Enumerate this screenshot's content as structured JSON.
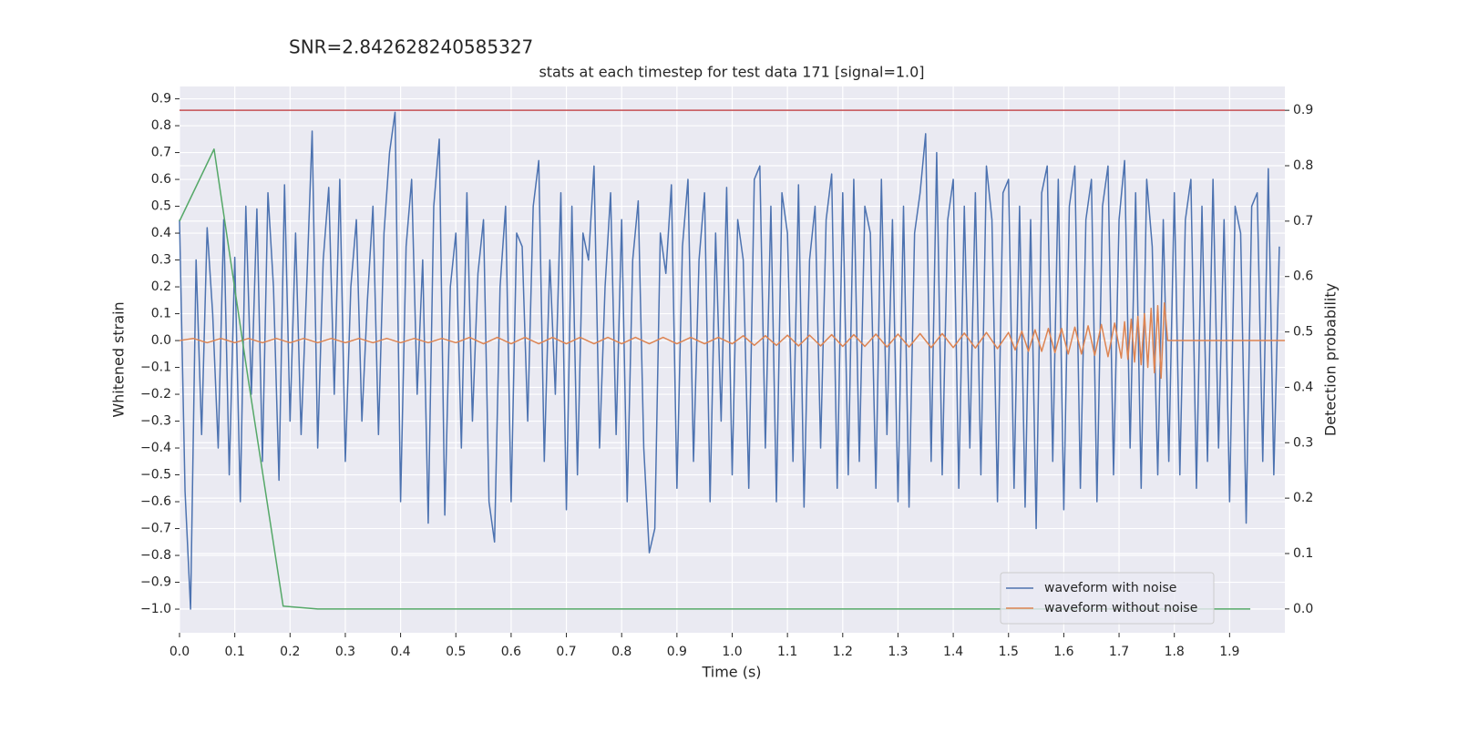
{
  "chart_data": {
    "type": "line",
    "suptitle": "SNR=2.842628240585327",
    "title": "stats at each timestep for test data 171 [signal=1.0]",
    "xlabel": "Time (s)",
    "ylabel": "Whitened strain",
    "y2label": "Detection probability",
    "xlim": [
      0,
      2.0
    ],
    "ylim": [
      -1.088,
      0.946
    ],
    "y2lim": [
      -0.043,
      0.943
    ],
    "xticks": [
      {
        "value": 0,
        "label": "0.0"
      },
      0.1,
      0.2,
      0.3,
      0.4,
      0.5,
      0.6,
      0.7,
      0.8,
      0.9,
      {
        "value": 1,
        "label": "1.0"
      },
      1.1,
      1.2,
      1.3,
      1.4,
      1.5,
      1.6,
      1.7,
      1.8,
      1.9
    ],
    "yticks": [
      {
        "value": -1,
        "label": "−1.0"
      },
      {
        "value": -0.9,
        "label": "−0.9"
      },
      {
        "value": -0.8,
        "label": "−0.8"
      },
      {
        "value": -0.7,
        "label": "−0.7"
      },
      {
        "value": -0.6,
        "label": "−0.6"
      },
      {
        "value": -0.5,
        "label": "−0.5"
      },
      {
        "value": -0.4,
        "label": "−0.4"
      },
      {
        "value": -0.3,
        "label": "−0.3"
      },
      {
        "value": -0.2,
        "label": "−0.2"
      },
      {
        "value": -0.1,
        "label": "−0.1"
      },
      {
        "value": 0,
        "label": "0.0"
      },
      0.1,
      0.2,
      0.3,
      0.4,
      0.5,
      0.6,
      0.7,
      0.8,
      0.9
    ],
    "y2ticks": [
      {
        "value": 0,
        "label": "0.0"
      },
      0.1,
      0.2,
      0.3,
      0.4,
      0.5,
      0.6,
      0.7,
      0.8,
      0.9
    ],
    "grid": true,
    "legend": "lower right",
    "series": [
      {
        "name": "waveform with noise",
        "color": "#4c72b0",
        "x": [
          0,
          0.01,
          0.02,
          0.03,
          0.04,
          0.05,
          0.06,
          0.07,
          0.08,
          0.09,
          0.1,
          0.11,
          0.12,
          0.13,
          0.14,
          0.15,
          0.16,
          0.17,
          0.18,
          0.19,
          0.2,
          0.21,
          0.22,
          0.23,
          0.24,
          0.25,
          0.26,
          0.27,
          0.28,
          0.29,
          0.3,
          0.31,
          0.32,
          0.33,
          0.34,
          0.35,
          0.36,
          0.37,
          0.38,
          0.39,
          0.4,
          0.41,
          0.42,
          0.43,
          0.44,
          0.45,
          0.46,
          0.47,
          0.48,
          0.49,
          0.5,
          0.51,
          0.52,
          0.53,
          0.54,
          0.55,
          0.56,
          0.57,
          0.58,
          0.59,
          0.6,
          0.61,
          0.62,
          0.63,
          0.64,
          0.65,
          0.66,
          0.67,
          0.68,
          0.69,
          0.7,
          0.71,
          0.72,
          0.73,
          0.74,
          0.75,
          0.76,
          0.77,
          0.78,
          0.79,
          0.8,
          0.81,
          0.82,
          0.83,
          0.84,
          0.85,
          0.86,
          0.87,
          0.88,
          0.89,
          0.9,
          0.91,
          0.92,
          0.93,
          0.94,
          0.95,
          0.96,
          0.97,
          0.98,
          0.99,
          1,
          1.01,
          1.02,
          1.03,
          1.04,
          1.05,
          1.06,
          1.07,
          1.08,
          1.09,
          1.1,
          1.11,
          1.12,
          1.13,
          1.14,
          1.15,
          1.16,
          1.17,
          1.18,
          1.19,
          1.2,
          1.21,
          1.22,
          1.23,
          1.24,
          1.25,
          1.26,
          1.27,
          1.28,
          1.29,
          1.3,
          1.31,
          1.32,
          1.33,
          1.34,
          1.35,
          1.36,
          1.37,
          1.38,
          1.39,
          1.4,
          1.41,
          1.42,
          1.43,
          1.44,
          1.45,
          1.46,
          1.47,
          1.48,
          1.49,
          1.5,
          1.51,
          1.52,
          1.53,
          1.54,
          1.55,
          1.56,
          1.57,
          1.58,
          1.59,
          1.6,
          1.61,
          1.62,
          1.63,
          1.64,
          1.65,
          1.66,
          1.67,
          1.68,
          1.69,
          1.7,
          1.71,
          1.72,
          1.73,
          1.74,
          1.75,
          1.76,
          1.77,
          1.78,
          1.79,
          1.8,
          1.81,
          1.82,
          1.83,
          1.84,
          1.85,
          1.86,
          1.87,
          1.88,
          1.89,
          1.9,
          1.91,
          1.92,
          1.93,
          1.94,
          1.95,
          1.96,
          1.97,
          1.98,
          1.99
        ],
        "values": [
          0.45,
          -0.56,
          -1.0,
          0.3,
          -0.35,
          0.42,
          0.1,
          -0.4,
          0.45,
          -0.5,
          0.31,
          -0.6,
          0.5,
          -0.2,
          0.49,
          -0.45,
          0.55,
          0.2,
          -0.52,
          0.58,
          -0.3,
          0.4,
          -0.35,
          0.2,
          0.78,
          -0.4,
          0.3,
          0.57,
          -0.2,
          0.6,
          -0.45,
          0.2,
          0.45,
          -0.3,
          0.15,
          0.5,
          -0.35,
          0.4,
          0.7,
          0.85,
          -0.6,
          0.35,
          0.6,
          -0.2,
          0.3,
          -0.68,
          0.5,
          0.75,
          -0.65,
          0.2,
          0.4,
          -0.4,
          0.55,
          -0.3,
          0.25,
          0.45,
          -0.6,
          -0.75,
          0.2,
          0.5,
          -0.6,
          0.4,
          0.35,
          -0.3,
          0.5,
          0.67,
          -0.45,
          0.3,
          -0.2,
          0.55,
          -0.63,
          0.5,
          -0.5,
          0.4,
          0.3,
          0.65,
          -0.4,
          0.2,
          0.55,
          -0.35,
          0.45,
          -0.6,
          0.3,
          0.52,
          -0.4,
          -0.79,
          -0.7,
          0.4,
          0.25,
          0.58,
          -0.55,
          0.35,
          0.6,
          -0.45,
          0.3,
          0.55,
          -0.6,
          0.4,
          -0.3,
          0.57,
          -0.5,
          0.45,
          0.3,
          -0.55,
          0.6,
          0.65,
          -0.4,
          0.5,
          -0.6,
          0.55,
          0.4,
          -0.45,
          0.58,
          -0.62,
          0.3,
          0.5,
          -0.4,
          0.45,
          0.62,
          -0.55,
          0.55,
          -0.5,
          0.6,
          -0.45,
          0.5,
          0.4,
          -0.55,
          0.6,
          -0.35,
          0.45,
          -0.6,
          0.5,
          -0.62,
          0.4,
          0.55,
          0.77,
          -0.45,
          0.7,
          -0.5,
          0.45,
          0.6,
          -0.55,
          0.5,
          -0.4,
          0.55,
          -0.5,
          0.65,
          0.45,
          -0.6,
          0.55,
          0.6,
          -0.55,
          0.5,
          -0.62,
          0.45,
          -0.7,
          0.55,
          0.65,
          -0.45,
          0.6,
          -0.63,
          0.5,
          0.65,
          -0.55,
          0.45,
          0.6,
          -0.6,
          0.5,
          0.65,
          -0.5,
          0.45,
          0.67,
          -0.4,
          0.55,
          -0.55,
          0.6,
          0.35,
          -0.5,
          0.45,
          -0.45,
          0.55,
          -0.5,
          0.45,
          0.6,
          -0.55,
          0.5,
          -0.45,
          0.6,
          -0.4,
          0.45,
          -0.6,
          0.5,
          0.4,
          -0.68,
          0.5,
          0.55,
          -0.45,
          0.64,
          -0.5,
          0.35
        ]
      },
      {
        "name": "waveform without noise",
        "color": "#dd8452",
        "x": [
          0,
          0.025,
          0.05,
          0.075,
          0.1,
          0.125,
          0.15,
          0.175,
          0.2,
          0.225,
          0.25,
          0.275,
          0.3,
          0.325,
          0.35,
          0.375,
          0.4,
          0.425,
          0.45,
          0.475,
          0.5,
          0.525,
          0.55,
          0.575,
          0.6,
          0.625,
          0.65,
          0.675,
          0.7,
          0.725,
          0.75,
          0.775,
          0.8,
          0.825,
          0.85,
          0.875,
          0.9,
          0.925,
          0.95,
          0.975,
          1.0,
          1.02,
          1.04,
          1.06,
          1.08,
          1.1,
          1.12,
          1.14,
          1.16,
          1.18,
          1.2,
          1.22,
          1.24,
          1.26,
          1.28,
          1.3,
          1.32,
          1.34,
          1.36,
          1.38,
          1.4,
          1.42,
          1.44,
          1.46,
          1.48,
          1.5,
          1.512,
          1.524,
          1.536,
          1.548,
          1.56,
          1.572,
          1.584,
          1.596,
          1.608,
          1.62,
          1.632,
          1.644,
          1.656,
          1.668,
          1.68,
          1.692,
          1.704,
          1.71,
          1.716,
          1.722,
          1.728,
          1.734,
          1.74,
          1.746,
          1.752,
          1.758,
          1.764,
          1.77,
          1.776,
          1.782,
          1.788,
          2.0
        ],
        "values": [
          0,
          0.008,
          -0.008,
          0.008,
          -0.008,
          0.008,
          -0.008,
          0.008,
          -0.008,
          0.008,
          -0.008,
          0.008,
          -0.008,
          0.008,
          -0.008,
          0.008,
          -0.008,
          0.008,
          -0.008,
          0.008,
          -0.008,
          0.012,
          -0.012,
          0.012,
          -0.012,
          0.012,
          -0.012,
          0.012,
          -0.012,
          0.012,
          -0.012,
          0.012,
          -0.012,
          0.012,
          -0.012,
          0.012,
          -0.012,
          0.012,
          -0.012,
          0.012,
          -0.012,
          0.018,
          -0.018,
          0.018,
          -0.018,
          0.02,
          -0.02,
          0.02,
          -0.02,
          0.022,
          -0.022,
          0.022,
          -0.022,
          0.024,
          -0.024,
          0.024,
          -0.024,
          0.026,
          -0.026,
          0.026,
          -0.026,
          0.028,
          -0.028,
          0.03,
          -0.03,
          0.03,
          -0.035,
          0.035,
          -0.04,
          0.04,
          -0.04,
          0.045,
          -0.045,
          0.045,
          -0.05,
          0.05,
          -0.05,
          0.055,
          -0.055,
          0.06,
          -0.06,
          0.065,
          -0.065,
          0.07,
          -0.07,
          0.08,
          -0.08,
          0.09,
          -0.09,
          0.1,
          -0.1,
          0.12,
          -0.12,
          0.13,
          -0.14,
          0.14,
          0,
          0
        ]
      },
      {
        "color": "#55a868",
        "axis": "y2",
        "x": [
          0,
          0.0625,
          0.125,
          0.1875,
          0.25,
          0.3125,
          0.375,
          0.4375,
          0.5,
          0.5625,
          0.625,
          0.6875,
          0.75,
          0.8125,
          0.875,
          0.9375,
          1.0,
          1.0625,
          1.125,
          1.1875,
          1.25,
          1.3125,
          1.375,
          1.4375,
          1.5,
          1.5625,
          1.625,
          1.6875,
          1.75,
          1.8125,
          1.875,
          1.9375
        ],
        "values": [
          0.7,
          0.83,
          0.41,
          0.005,
          0,
          0,
          0,
          0,
          0,
          0,
          0,
          0,
          0,
          0,
          0,
          0,
          0,
          0,
          0,
          0,
          0,
          0,
          0,
          0,
          0,
          0,
          0,
          0,
          0,
          0,
          0,
          0
        ]
      },
      {
        "color": "#c44e52",
        "axis": "y2",
        "x": [
          0,
          2.0
        ],
        "values": [
          0.9,
          0.9
        ]
      }
    ]
  }
}
